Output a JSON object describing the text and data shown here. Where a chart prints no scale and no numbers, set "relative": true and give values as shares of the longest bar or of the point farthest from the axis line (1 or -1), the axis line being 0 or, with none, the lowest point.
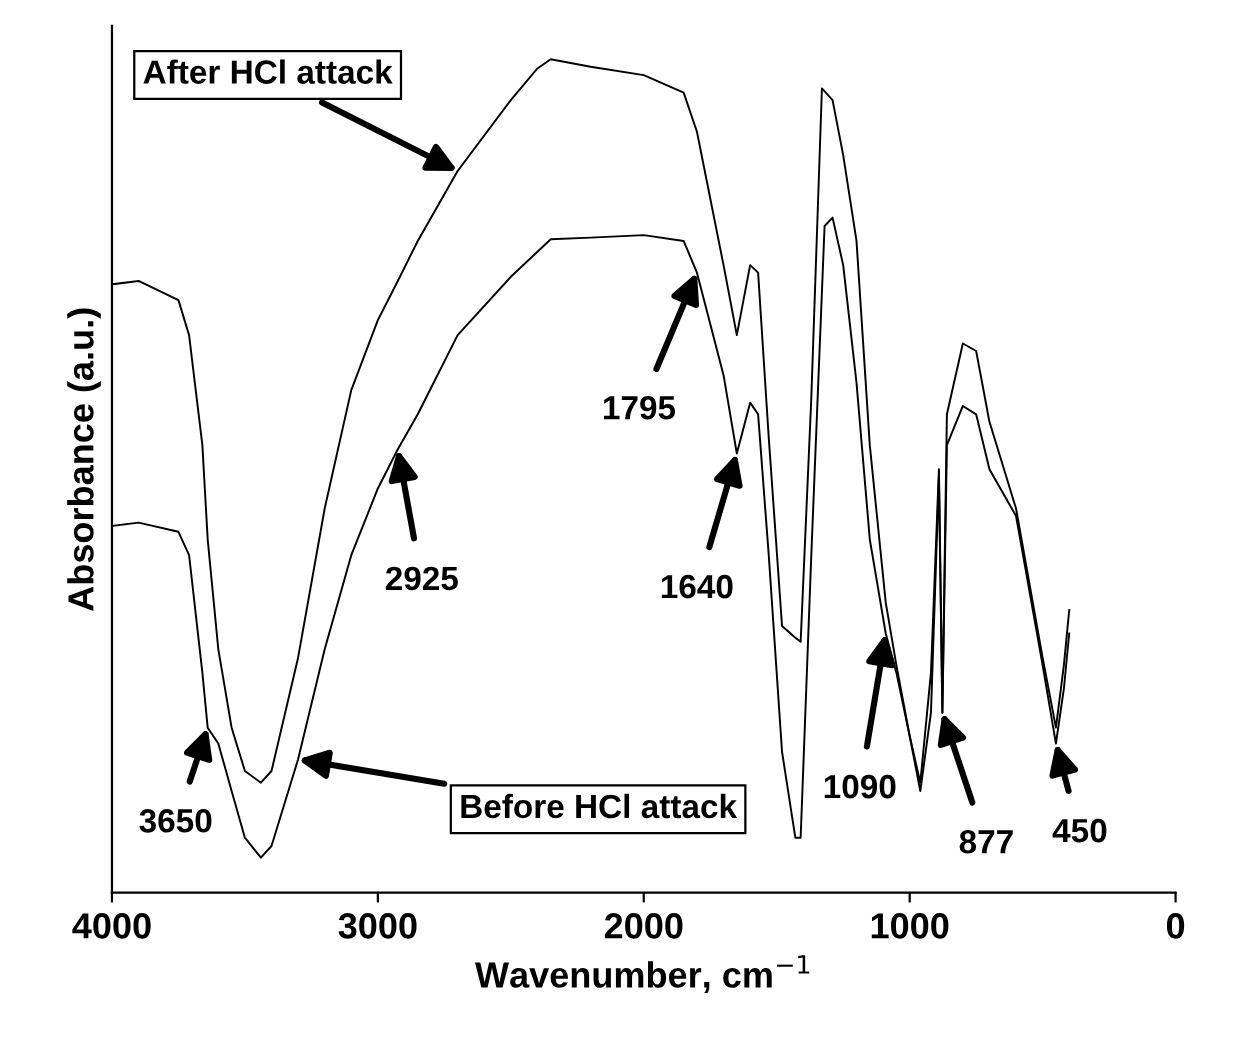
{
  "chart_data": {
    "type": "line",
    "relative": true,
    "xlabel": "Wavenumber, cm$^{−1}$",
    "ylabel": "Absorbance (a.u.)",
    "xlim": [
      4000,
      0
    ],
    "xticks": [
      4000,
      3000,
      2000,
      1000,
      0
    ],
    "series": [
      {
        "color": "#000000",
        "x": [
          4000,
          3900,
          3750,
          3710,
          3660,
          3640,
          3600,
          3550,
          3500,
          3440,
          3400,
          3300,
          3200,
          3100,
          3000,
          2925,
          2850,
          2700,
          2500,
          2400,
          2350,
          2200,
          2000,
          1850,
          1800,
          1700,
          1650,
          1600,
          1570,
          1530,
          1480,
          1430,
          1410,
          1370,
          1330,
          1290,
          1250,
          1200,
          1150,
          1090,
          1050,
          1000,
          960,
          920,
          890,
          877,
          860,
          800,
          750,
          700,
          600,
          500,
          450,
          420,
          400
        ],
        "values": [
          0.73,
          0.734,
          0.711,
          0.669,
          0.537,
          0.424,
          0.292,
          0.198,
          0.146,
          0.132,
          0.146,
          0.282,
          0.461,
          0.603,
          0.687,
          0.734,
          0.782,
          0.866,
          0.951,
          0.989,
          1.0,
          0.991,
          0.981,
          0.96,
          0.913,
          0.753,
          0.669,
          0.753,
          0.744,
          0.546,
          0.32,
          0.306,
          0.301,
          0.593,
          0.965,
          0.951,
          0.885,
          0.782,
          0.537,
          0.348,
          0.273,
          0.188,
          0.132,
          0.264,
          0.508,
          0.216,
          0.574,
          0.659,
          0.65,
          0.565,
          0.461,
          0.282,
          0.198,
          0.273,
          0.339
        ]
      },
      {
        "color": "#000000",
        "x": [
          4000,
          3900,
          3750,
          3710,
          3660,
          3640,
          3600,
          3550,
          3500,
          3440,
          3400,
          3300,
          3200,
          3100,
          3000,
          2925,
          2850,
          2700,
          2500,
          2350,
          2200,
          2000,
          1850,
          1800,
          1700,
          1650,
          1600,
          1570,
          1530,
          1480,
          1430,
          1410,
          1370,
          1320,
          1290,
          1250,
          1200,
          1150,
          1090,
          1050,
          1000,
          960,
          920,
          890,
          877,
          860,
          800,
          750,
          700,
          600,
          500,
          450,
          420,
          400
        ],
        "values": [
          0.44,
          0.444,
          0.433,
          0.405,
          0.264,
          0.198,
          0.179,
          0.122,
          0.066,
          0.042,
          0.056,
          0.16,
          0.292,
          0.405,
          0.485,
          0.532,
          0.574,
          0.669,
          0.739,
          0.784,
          0.786,
          0.789,
          0.782,
          0.744,
          0.621,
          0.527,
          0.588,
          0.574,
          0.405,
          0.169,
          0.066,
          0.066,
          0.405,
          0.8,
          0.81,
          0.753,
          0.612,
          0.424,
          0.311,
          0.264,
          0.188,
          0.122,
          0.216,
          0.499,
          0.216,
          0.537,
          0.584,
          0.574,
          0.508,
          0.452,
          0.273,
          0.179,
          0.245,
          0.311
        ]
      }
    ],
    "annotations": [
      {
        "text": "After HCl attack",
        "x": 2700,
        "y": 0.866
      },
      {
        "text": "Before HCl attack",
        "x": 3300,
        "y": 0.16
      },
      {
        "text": "3650",
        "x": 3640,
        "y": 0.198
      },
      {
        "text": "2925",
        "x": 2925,
        "y": 0.532
      },
      {
        "text": "1795",
        "x": 1800,
        "y": 0.744
      },
      {
        "text": "1640",
        "x": 1650,
        "y": 0.527
      },
      {
        "text": "1090",
        "x": 1090,
        "y": 0.311
      },
      {
        "text": "877",
        "x": 877,
        "y": 0.216
      },
      {
        "text": "450",
        "x": 450,
        "y": 0.179
      }
    ]
  }
}
